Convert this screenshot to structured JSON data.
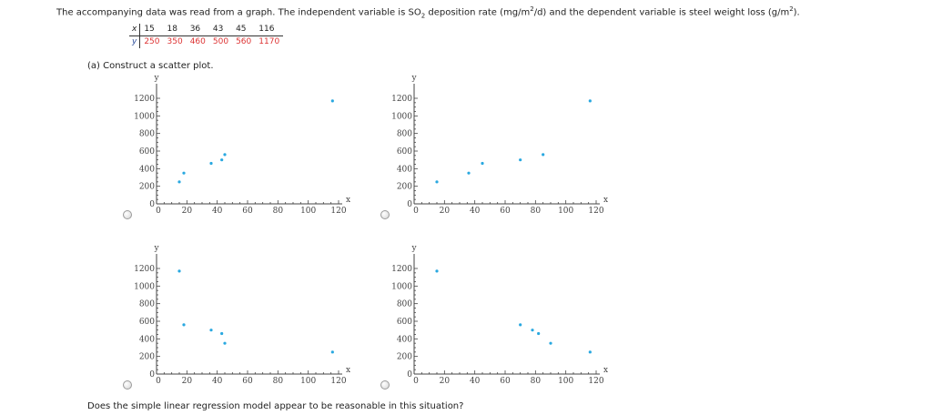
{
  "problem": {
    "intro_before_sub": "The accompanying data was read from a graph. The independent variable is SO",
    "intro_sub": "2",
    "intro_middle": " deposition rate (mg/m",
    "intro_sup1": "2",
    "intro_after_sup1": "/d) and the dependent variable is steel weight loss (g/m",
    "intro_sup2": "2",
    "intro_end": ").",
    "table": {
      "x_header": "x",
      "y_header": "y",
      "x_values": [
        "15",
        "18",
        "36",
        "43",
        "45",
        "116"
      ],
      "y_values": [
        "250",
        "350",
        "460",
        "500",
        "560",
        "1170"
      ]
    },
    "part_a_label": "(a) Construct a scatter plot.",
    "question": "Does the simple linear regression model appear to be reasonable in this situation?"
  },
  "colors": {
    "point": "#29a8e0",
    "table_value": "#dd3333",
    "axis": "#444444"
  },
  "chart_data": [
    {
      "type": "scatter",
      "option": "top-left",
      "xlabel": "x",
      "ylabel": "y",
      "xlim": [
        0,
        120
      ],
      "ylim": [
        0,
        1200
      ],
      "x_ticks": [
        0,
        20,
        40,
        60,
        80,
        100,
        120
      ],
      "y_ticks": [
        0,
        200,
        400,
        600,
        800,
        1000,
        1200
      ],
      "x": [
        15,
        18,
        36,
        43,
        45,
        116
      ],
      "y": [
        250,
        350,
        460,
        500,
        560,
        1170
      ]
    },
    {
      "type": "scatter",
      "option": "top-right",
      "xlabel": "x",
      "ylabel": "y",
      "xlim": [
        0,
        120
      ],
      "ylim": [
        0,
        1200
      ],
      "x_ticks": [
        0,
        20,
        40,
        60,
        80,
        100,
        120
      ],
      "y_ticks": [
        0,
        200,
        400,
        600,
        800,
        1000,
        1200
      ],
      "x": [
        15,
        36,
        45,
        70,
        85,
        116
      ],
      "y": [
        250,
        350,
        460,
        500,
        560,
        1170
      ]
    },
    {
      "type": "scatter",
      "option": "bottom-left",
      "xlabel": "x",
      "ylabel": "y",
      "xlim": [
        0,
        120
      ],
      "ylim": [
        0,
        1200
      ],
      "x_ticks": [
        0,
        20,
        40,
        60,
        80,
        100,
        120
      ],
      "y_ticks": [
        0,
        200,
        400,
        600,
        800,
        1000,
        1200
      ],
      "x": [
        15,
        18,
        36,
        43,
        45,
        116
      ],
      "y": [
        1170,
        560,
        500,
        460,
        350,
        250
      ]
    },
    {
      "type": "scatter",
      "option": "bottom-right",
      "xlabel": "x",
      "ylabel": "y",
      "xlim": [
        0,
        120
      ],
      "ylim": [
        0,
        1200
      ],
      "x_ticks": [
        0,
        20,
        40,
        60,
        80,
        100,
        120
      ],
      "y_ticks": [
        0,
        200,
        400,
        600,
        800,
        1000,
        1200
      ],
      "x": [
        15,
        70,
        78,
        82,
        90,
        116
      ],
      "y": [
        1170,
        560,
        500,
        460,
        350,
        250
      ]
    }
  ]
}
